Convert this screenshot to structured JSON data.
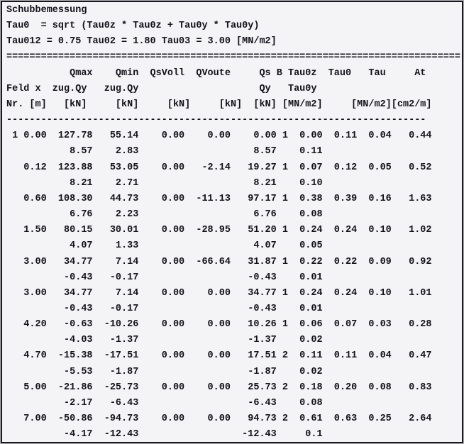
{
  "report": {
    "title": "Schubbemessung",
    "formula": "Tau0  = sqrt (Tau0z * Tau0z + Tau0y * Tau0y)",
    "limits": "Tau012 = 0.75 Tau02 = 1.80 Tau03 = 3.00 [MN/m2]",
    "rule_double": "===============================================================================",
    "col_header_1": "           Qmax    Qmin  QsVoll  QVoute     Qs B Tau0z  Tau0   Tau     At",
    "col_header_2": "Feld x  zug.Qy   zug.Qy                     Qy   Tau0y",
    "col_header_3": "Nr. [m]   [kN]     [kN]     [kN]     [kN]  [kN] [MN/m2]     [MN/m2][cm2/m]",
    "rule_dash": "-------------------------------------------------------------------------",
    "rows": [
      {
        "main": " 1 0.00  127.78   55.14    0.00    0.00    0.00 1  0.00  0.11  0.04   0.44",
        "sub": "           8.57    2.83                    8.57    0.11"
      },
      {
        "main": "   0.12  123.88   53.05    0.00   -2.14   19.27 1  0.07  0.12  0.05   0.52",
        "sub": "           8.21    2.71                    8.21    0.10"
      },
      {
        "main": "   0.60  108.30   44.73    0.00  -11.13   97.17 1  0.38  0.39  0.16   1.63",
        "sub": "           6.76    2.23                    6.76    0.08"
      },
      {
        "main": "   1.50   80.15   30.01    0.00  -28.95   51.20 1  0.24  0.24  0.10   1.02",
        "sub": "           4.07    1.33                    4.07    0.05"
      },
      {
        "main": "   3.00   34.77    7.14    0.00  -66.64   31.87 1  0.22  0.22  0.09   0.92",
        "sub": "          -0.43   -0.17                   -0.43    0.01"
      },
      {
        "main": "   3.00   34.77    7.14    0.00    0.00   34.77 1  0.24  0.24  0.10   1.01",
        "sub": "          -0.43   -0.17                   -0.43    0.01"
      },
      {
        "main": "   4.20   -0.63  -10.26    0.00    0.00   10.26 1  0.06  0.07  0.03   0.28",
        "sub": "          -4.03   -1.37                   -1.37    0.02"
      },
      {
        "main": "   4.70  -15.38  -17.51    0.00    0.00   17.51 2  0.11  0.11  0.04   0.47",
        "sub": "          -5.53   -1.87                   -1.87    0.02"
      },
      {
        "main": "   5.00  -21.86  -25.73    0.00    0.00   25.73 2  0.18  0.20  0.08   0.83",
        "sub": "          -2.17   -6.43                   -6.43    0.08"
      },
      {
        "main": "   7.00  -50.86  -94.73    0.00    0.00   94.73 2  0.61  0.63  0.25   2.64",
        "sub": "          -4.17  -12.43                  -12.43     0.1"
      }
    ],
    "colors": {
      "text": "#121219",
      "background": "#f4f4f6",
      "border": "#17171c"
    }
  }
}
